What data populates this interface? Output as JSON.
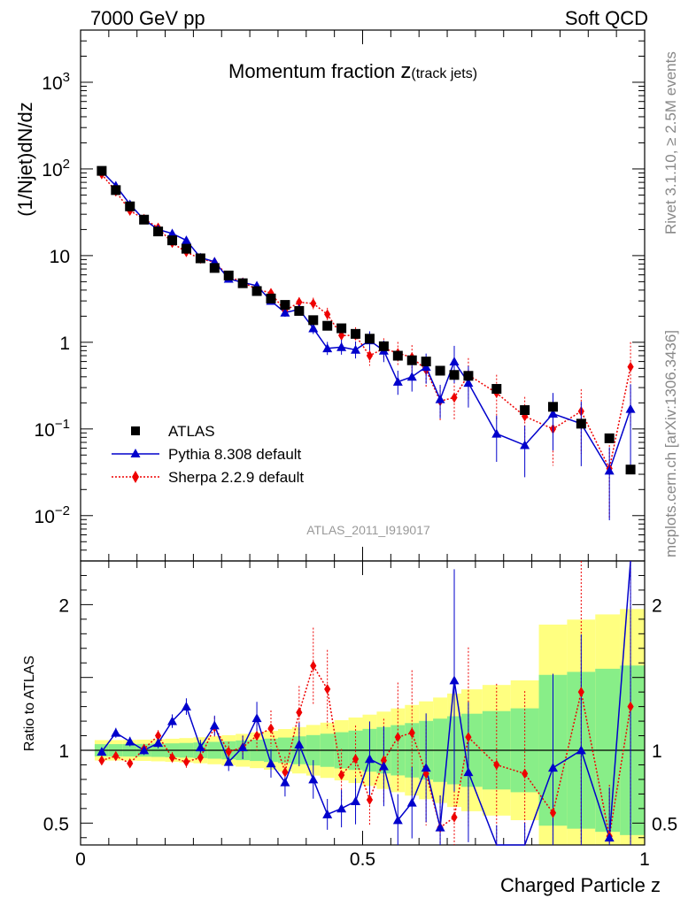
{
  "header": {
    "left": "7000 GeV pp",
    "right": "Soft QCD"
  },
  "side_labels": {
    "rivet": "Rivet 3.1.10, ≥ 2.5M events",
    "mcplots": "mcplots.cern.ch [arXiv:1306.3436]"
  },
  "chart_data": {
    "type": "scatter",
    "title_main": "Momentum fraction ",
    "title_var": "z",
    "title_sub": "(track jets)",
    "analysis_id": "ATLAS_2011_I919017",
    "xlabel": "Charged Particle z",
    "ylabel": "(1/Njet)dN/dz",
    "ratio_ylabel": "Ratio to ATLAS",
    "xlim": [
      0,
      1
    ],
    "ylim": [
      0.003,
      4000
    ],
    "ylog": true,
    "ratio_ylim": [
      0.35,
      2.3
    ],
    "x_ticks": [
      "0",
      "0.5",
      "1"
    ],
    "legend_position": "lower-left",
    "colors": {
      "atlas": "#000000",
      "pythia": "#0000cc",
      "sherpa": "#ee0000",
      "band_outer": "#ffff80",
      "band_inner": "#88ee88"
    },
    "x": [
      0.0375,
      0.0625,
      0.0875,
      0.1125,
      0.1375,
      0.1625,
      0.1875,
      0.2125,
      0.2375,
      0.2625,
      0.2875,
      0.3125,
      0.3375,
      0.3625,
      0.3875,
      0.4125,
      0.4375,
      0.4625,
      0.4875,
      0.5125,
      0.5375,
      0.5625,
      0.5875,
      0.6125,
      0.6375,
      0.6625,
      0.6875,
      0.7375,
      0.7875,
      0.8375,
      0.8875,
      0.9375,
      0.975
    ],
    "series": [
      {
        "name": "ATLAS",
        "values": [
          95,
          57,
          37,
          26,
          19,
          15,
          12,
          9.3,
          7.2,
          5.9,
          4.8,
          3.9,
          3.2,
          2.7,
          2.3,
          1.8,
          1.55,
          1.45,
          1.25,
          1.1,
          0.9,
          0.7,
          0.62,
          0.6,
          0.47,
          0.42,
          0.41,
          0.29,
          0.165,
          0.18,
          0.115,
          0.078,
          0.034
        ]
      },
      {
        "name": "Pythia 8.308 default",
        "values": [
          94,
          64,
          39,
          26,
          20,
          18,
          15,
          9.5,
          8.5,
          5.4,
          4.9,
          4.5,
          3.0,
          2.2,
          2.4,
          1.45,
          0.85,
          0.88,
          0.82,
          1.05,
          0.8,
          0.35,
          0.4,
          0.52,
          0.22,
          0.6,
          0.34,
          0.088,
          0.065,
          0.15,
          0.115,
          0.033,
          0.17
        ]
      },
      {
        "name": "Sherpa 2.2.9 default",
        "values": [
          87,
          55,
          33,
          26.5,
          21,
          14,
          11,
          9.2,
          8.4,
          5.8,
          4.9,
          4.1,
          3.7,
          2.3,
          2.9,
          2.8,
          2.1,
          1.2,
          1.2,
          0.7,
          0.85,
          0.75,
          0.67,
          0.48,
          0.21,
          0.23,
          0.42,
          0.26,
          0.14,
          0.1,
          0.16,
          0.035,
          0.52
        ]
      }
    ],
    "pythia_ratio": [
      0.99,
      1.12,
      1.06,
      1.0,
      1.05,
      1.2,
      1.3,
      1.02,
      1.17,
      0.92,
      1.02,
      1.22,
      0.91,
      0.78,
      1.04,
      0.8,
      0.56,
      0.6,
      0.65,
      0.94,
      0.89,
      0.52,
      0.64,
      0.88,
      0.47,
      1.48,
      0.85,
      0.3,
      0.3,
      0.88,
      1.0,
      0.4,
      2.4
    ],
    "sherpa_ratio": [
      0.93,
      0.96,
      0.91,
      1.01,
      1.1,
      0.95,
      0.92,
      0.95,
      1.16,
      0.99,
      1.02,
      1.1,
      1.15,
      0.85,
      1.26,
      1.58,
      1.42,
      0.83,
      0.94,
      0.66,
      0.93,
      1.09,
      1.12,
      0.84,
      0.47,
      0.54,
      1.09,
      0.9,
      0.84,
      0.57,
      1.4,
      0.41,
      1.3
    ]
  }
}
